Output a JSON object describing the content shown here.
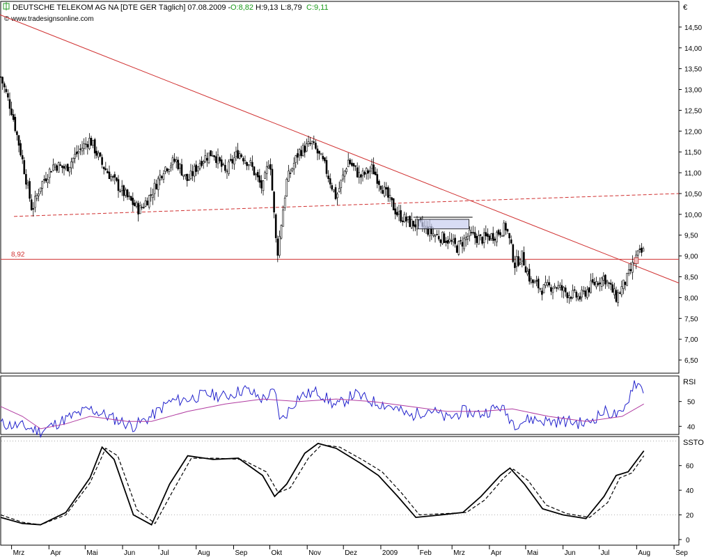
{
  "header": {
    "title": "DEUTSCHE TELEKOM AG NA [DTE GER  Täglich] 07.08.2009 -",
    "open": "O:8,82",
    "high": "H:9,13",
    "low": "L:8,79",
    "close": "C:9,11",
    "source": "© www.tradesignsonline.com",
    "icon_color": "#2a9a2a",
    "close_color": "#1a9a1a",
    "open_color": "#1a9a1a"
  },
  "chart_data": [
    {
      "type": "candlestick",
      "currency_label": "€",
      "y_ticks": [
        "14,50",
        "14,00",
        "13,50",
        "13,00",
        "12,50",
        "12,00",
        "11,50",
        "11,00",
        "10,50",
        "10,00",
        "9,50",
        "9,00",
        "8,50",
        "8,00",
        "7,50",
        "7,00",
        "6,50"
      ],
      "ylim": [
        6.2,
        15.1
      ],
      "x_months": [
        "Mrz",
        "Apr",
        "Mai",
        "Jun",
        "Jul",
        "Aug",
        "Sep",
        "Okt",
        "Nov",
        "Dez",
        "2009",
        "Feb",
        "Mrz",
        "Apr",
        "Mai",
        "Jun",
        "Jul",
        "Aug",
        "Sep"
      ],
      "horizontal_level": {
        "value": 8.92,
        "label": "8,92",
        "color": "#d03030"
      },
      "trendline": {
        "from": [
          "2008-02-20",
          14.8
        ],
        "to": [
          "2009-09-05",
          8.35
        ],
        "color": "#d03030"
      },
      "dashed_trendline": {
        "from": [
          "2008-03-03",
          9.95
        ],
        "to": [
          "2009-09-05",
          10.5
        ],
        "color": "#d03030"
      },
      "series_close_approx": [
        [
          "2008-02-21",
          13.3
        ],
        [
          "2008-03-01",
          12.5
        ],
        [
          "2008-03-10",
          11.3
        ],
        [
          "2008-03-18",
          10.1
        ],
        [
          "2008-03-25",
          10.7
        ],
        [
          "2008-04-05",
          11.2
        ],
        [
          "2008-04-15",
          11.1
        ],
        [
          "2008-04-25",
          11.5
        ],
        [
          "2008-05-05",
          11.8
        ],
        [
          "2008-05-15",
          11.2
        ],
        [
          "2008-05-25",
          10.8
        ],
        [
          "2008-06-05",
          10.4
        ],
        [
          "2008-06-15",
          10.1
        ],
        [
          "2008-06-25",
          10.5
        ],
        [
          "2008-07-05",
          11.1
        ],
        [
          "2008-07-15",
          11.3
        ],
        [
          "2008-07-25",
          10.8
        ],
        [
          "2008-08-05",
          11.3
        ],
        [
          "2008-08-15",
          11.5
        ],
        [
          "2008-08-25",
          11.0
        ],
        [
          "2008-09-05",
          11.5
        ],
        [
          "2008-09-15",
          11.2
        ],
        [
          "2008-09-25",
          10.6
        ],
        [
          "2008-10-01",
          11.4
        ],
        [
          "2008-10-07",
          9.0
        ],
        [
          "2008-10-15",
          10.8
        ],
        [
          "2008-10-25",
          11.5
        ],
        [
          "2008-11-05",
          11.7
        ],
        [
          "2008-11-15",
          11.2
        ],
        [
          "2008-11-25",
          10.4
        ],
        [
          "2008-12-05",
          11.3
        ],
        [
          "2008-12-15",
          10.9
        ],
        [
          "2008-12-25",
          11.1
        ],
        [
          "2009-01-05",
          10.5
        ],
        [
          "2009-01-15",
          10.0
        ],
        [
          "2009-01-25",
          9.8
        ],
        [
          "2009-02-05",
          9.7
        ],
        [
          "2009-02-15",
          9.5
        ],
        [
          "2009-02-25",
          9.4
        ],
        [
          "2009-03-05",
          9.2
        ],
        [
          "2009-03-15",
          9.5
        ],
        [
          "2009-03-25",
          9.4
        ],
        [
          "2009-04-05",
          9.5
        ],
        [
          "2009-04-15",
          9.7
        ],
        [
          "2009-04-22",
          8.8
        ],
        [
          "2009-04-28",
          9.0
        ],
        [
          "2009-05-05",
          8.4
        ],
        [
          "2009-05-15",
          8.2
        ],
        [
          "2009-05-25",
          8.3
        ],
        [
          "2009-06-05",
          8.1
        ],
        [
          "2009-06-15",
          8.0
        ],
        [
          "2009-06-25",
          8.3
        ],
        [
          "2009-07-05",
          8.5
        ],
        [
          "2009-07-15",
          8.0
        ],
        [
          "2009-07-25",
          8.5
        ],
        [
          "2009-08-01",
          9.0
        ],
        [
          "2009-08-07",
          9.11
        ]
      ]
    },
    {
      "type": "line",
      "name": "RSI",
      "y_ticks": [
        "50",
        "40"
      ],
      "ylim": [
        37,
        60
      ],
      "series": [
        {
          "line_color": "#2222cc",
          "values_approx": [
            [
              "2008-02-21",
              41
            ],
            [
              "2008-03-10",
              40
            ],
            [
              "2008-03-25",
              38
            ],
            [
              "2008-04-15",
              43
            ],
            [
              "2008-05-05",
              47
            ],
            [
              "2008-05-20",
              44
            ],
            [
              "2008-06-10",
              40
            ],
            [
              "2008-06-25",
              44
            ],
            [
              "2008-07-10",
              50
            ],
            [
              "2008-07-25",
              51
            ],
            [
              "2008-08-10",
              53
            ],
            [
              "2008-08-25",
              52
            ],
            [
              "2008-09-10",
              55
            ],
            [
              "2008-09-25",
              51
            ],
            [
              "2008-10-05",
              54
            ],
            [
              "2008-10-10",
              42
            ],
            [
              "2008-10-25",
              52
            ],
            [
              "2008-11-10",
              54
            ],
            [
              "2008-11-25",
              48
            ],
            [
              "2008-12-10",
              53
            ],
            [
              "2008-12-25",
              50
            ],
            [
              "2009-01-10",
              48
            ],
            [
              "2009-01-25",
              44
            ],
            [
              "2009-02-10",
              47
            ],
            [
              "2009-02-25",
              43
            ],
            [
              "2009-03-10",
              46
            ],
            [
              "2009-03-25",
              45
            ],
            [
              "2009-04-10",
              48
            ],
            [
              "2009-04-22",
              41
            ],
            [
              "2009-05-05",
              43
            ],
            [
              "2009-05-20",
              42
            ],
            [
              "2009-06-05",
              42
            ],
            [
              "2009-06-20",
              41
            ],
            [
              "2009-07-05",
              46
            ],
            [
              "2009-07-20",
              44
            ],
            [
              "2009-07-30",
              58
            ],
            [
              "2009-08-07",
              55
            ]
          ]
        },
        {
          "line_color": "#b03aa0",
          "values_approx": [
            [
              "2008-02-21",
              48
            ],
            [
              "2008-03-10",
              44
            ],
            [
              "2008-03-25",
              39
            ],
            [
              "2008-04-15",
              41
            ],
            [
              "2008-05-05",
              44
            ],
            [
              "2008-06-05",
              42
            ],
            [
              "2008-06-25",
              42
            ],
            [
              "2008-07-25",
              46
            ],
            [
              "2008-08-25",
              49
            ],
            [
              "2008-09-25",
              51
            ],
            [
              "2008-10-25",
              50
            ],
            [
              "2008-11-25",
              51
            ],
            [
              "2008-12-25",
              50
            ],
            [
              "2009-01-25",
              48
            ],
            [
              "2009-02-25",
              46
            ],
            [
              "2009-03-25",
              46
            ],
            [
              "2009-04-20",
              47
            ],
            [
              "2009-05-20",
              44
            ],
            [
              "2009-06-20",
              42
            ],
            [
              "2009-07-20",
              44
            ],
            [
              "2009-08-07",
              49
            ]
          ]
        }
      ]
    },
    {
      "type": "line",
      "name": "SSTO",
      "y_ticks": [
        "60",
        "40",
        "20",
        "0"
      ],
      "ylim": [
        -4,
        83
      ],
      "reference_lines": [
        80,
        20
      ],
      "series": [
        {
          "line_style": "solid",
          "values_approx": [
            [
              "2008-02-21",
              18
            ],
            [
              "2008-03-10",
              13
            ],
            [
              "2008-03-25",
              12
            ],
            [
              "2008-04-15",
              22
            ],
            [
              "2008-05-05",
              50
            ],
            [
              "2008-05-15",
              75
            ],
            [
              "2008-05-25",
              65
            ],
            [
              "2008-06-10",
              20
            ],
            [
              "2008-06-25",
              12
            ],
            [
              "2008-07-10",
              45
            ],
            [
              "2008-07-25",
              68
            ],
            [
              "2008-08-15",
              65
            ],
            [
              "2008-09-05",
              66
            ],
            [
              "2008-09-25",
              52
            ],
            [
              "2008-10-05",
              35
            ],
            [
              "2008-10-15",
              45
            ],
            [
              "2008-10-30",
              70
            ],
            [
              "2008-11-10",
              78
            ],
            [
              "2008-11-25",
              74
            ],
            [
              "2008-12-15",
              62
            ],
            [
              "2008-12-30",
              52
            ],
            [
              "2009-01-15",
              35
            ],
            [
              "2009-01-30",
              18
            ],
            [
              "2009-02-20",
              20
            ],
            [
              "2009-03-10",
              22
            ],
            [
              "2009-03-25",
              35
            ],
            [
              "2009-04-10",
              52
            ],
            [
              "2009-04-18",
              58
            ],
            [
              "2009-04-30",
              45
            ],
            [
              "2009-05-15",
              25
            ],
            [
              "2009-06-01",
              20
            ],
            [
              "2009-06-20",
              17
            ],
            [
              "2009-07-05",
              35
            ],
            [
              "2009-07-15",
              52
            ],
            [
              "2009-07-25",
              55
            ],
            [
              "2009-08-07",
              72
            ]
          ]
        },
        {
          "line_style": "dashed",
          "values_approx": [
            [
              "2008-02-21",
              20
            ],
            [
              "2008-03-10",
              14
            ],
            [
              "2008-03-25",
              12
            ],
            [
              "2008-04-15",
              20
            ],
            [
              "2008-05-05",
              46
            ],
            [
              "2008-05-18",
              74
            ],
            [
              "2008-05-28",
              68
            ],
            [
              "2008-06-13",
              24
            ],
            [
              "2008-06-28",
              13
            ],
            [
              "2008-07-13",
              40
            ],
            [
              "2008-07-28",
              66
            ],
            [
              "2008-08-18",
              66
            ],
            [
              "2008-09-08",
              65
            ],
            [
              "2008-09-28",
              55
            ],
            [
              "2008-10-08",
              38
            ],
            [
              "2008-10-18",
              42
            ],
            [
              "2008-11-02",
              66
            ],
            [
              "2008-11-13",
              77
            ],
            [
              "2008-11-28",
              75
            ],
            [
              "2008-12-18",
              64
            ],
            [
              "2009-01-02",
              55
            ],
            [
              "2009-01-18",
              38
            ],
            [
              "2009-02-02",
              20
            ],
            [
              "2009-02-23",
              21
            ],
            [
              "2009-03-13",
              22
            ],
            [
              "2009-03-28",
              32
            ],
            [
              "2009-04-13",
              50
            ],
            [
              "2009-04-21",
              57
            ],
            [
              "2009-05-03",
              48
            ],
            [
              "2009-05-18",
              28
            ],
            [
              "2009-06-04",
              21
            ],
            [
              "2009-06-23",
              18
            ],
            [
              "2009-07-08",
              30
            ],
            [
              "2009-07-18",
              50
            ],
            [
              "2009-07-28",
              54
            ],
            [
              "2009-08-07",
              68
            ]
          ]
        }
      ]
    }
  ]
}
